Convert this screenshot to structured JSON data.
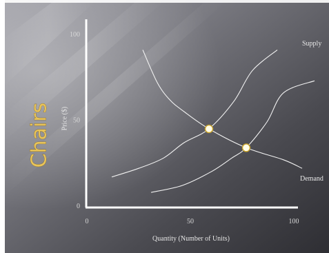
{
  "slide": {
    "title": "Chairs"
  },
  "colors": {
    "title": "#e8c45a",
    "curve": "#f2f2f2",
    "axis": "#ffffff",
    "point_fill": "#fffde8",
    "point_stroke": "#c9a227"
  },
  "chart_data": {
    "type": "line",
    "xlabel": "Quantity (Number of Units)",
    "ylabel": "Price ($)",
    "xlim": [
      0,
      100
    ],
    "ylim": [
      0,
      100
    ],
    "x_ticks": [
      "0",
      "50",
      "100"
    ],
    "y_ticks": [
      "0",
      "50",
      "100"
    ],
    "grid": false,
    "series": [
      {
        "name": "Supply",
        "values": [
          [
            12,
            17
          ],
          [
            25,
            22
          ],
          [
            37,
            28
          ],
          [
            47,
            37
          ],
          [
            59,
            45
          ],
          [
            71,
            61
          ],
          [
            80,
            79
          ],
          [
            92,
            91
          ]
        ]
      },
      {
        "name": "",
        "values": [
          [
            31,
            8
          ],
          [
            46,
            12
          ],
          [
            60,
            20
          ],
          [
            70,
            28
          ],
          [
            77,
            34
          ],
          [
            87,
            49
          ],
          [
            95,
            66
          ],
          [
            110,
            73
          ]
        ]
      },
      {
        "name": "Demand",
        "values": [
          [
            27,
            91
          ],
          [
            34,
            72
          ],
          [
            40,
            62
          ],
          [
            47,
            55
          ],
          [
            59,
            45
          ],
          [
            77,
            34
          ],
          [
            95,
            27
          ],
          [
            104,
            22
          ]
        ]
      }
    ],
    "highlight_points": [
      {
        "x": 59,
        "y": 45
      },
      {
        "x": 77,
        "y": 34
      }
    ]
  }
}
